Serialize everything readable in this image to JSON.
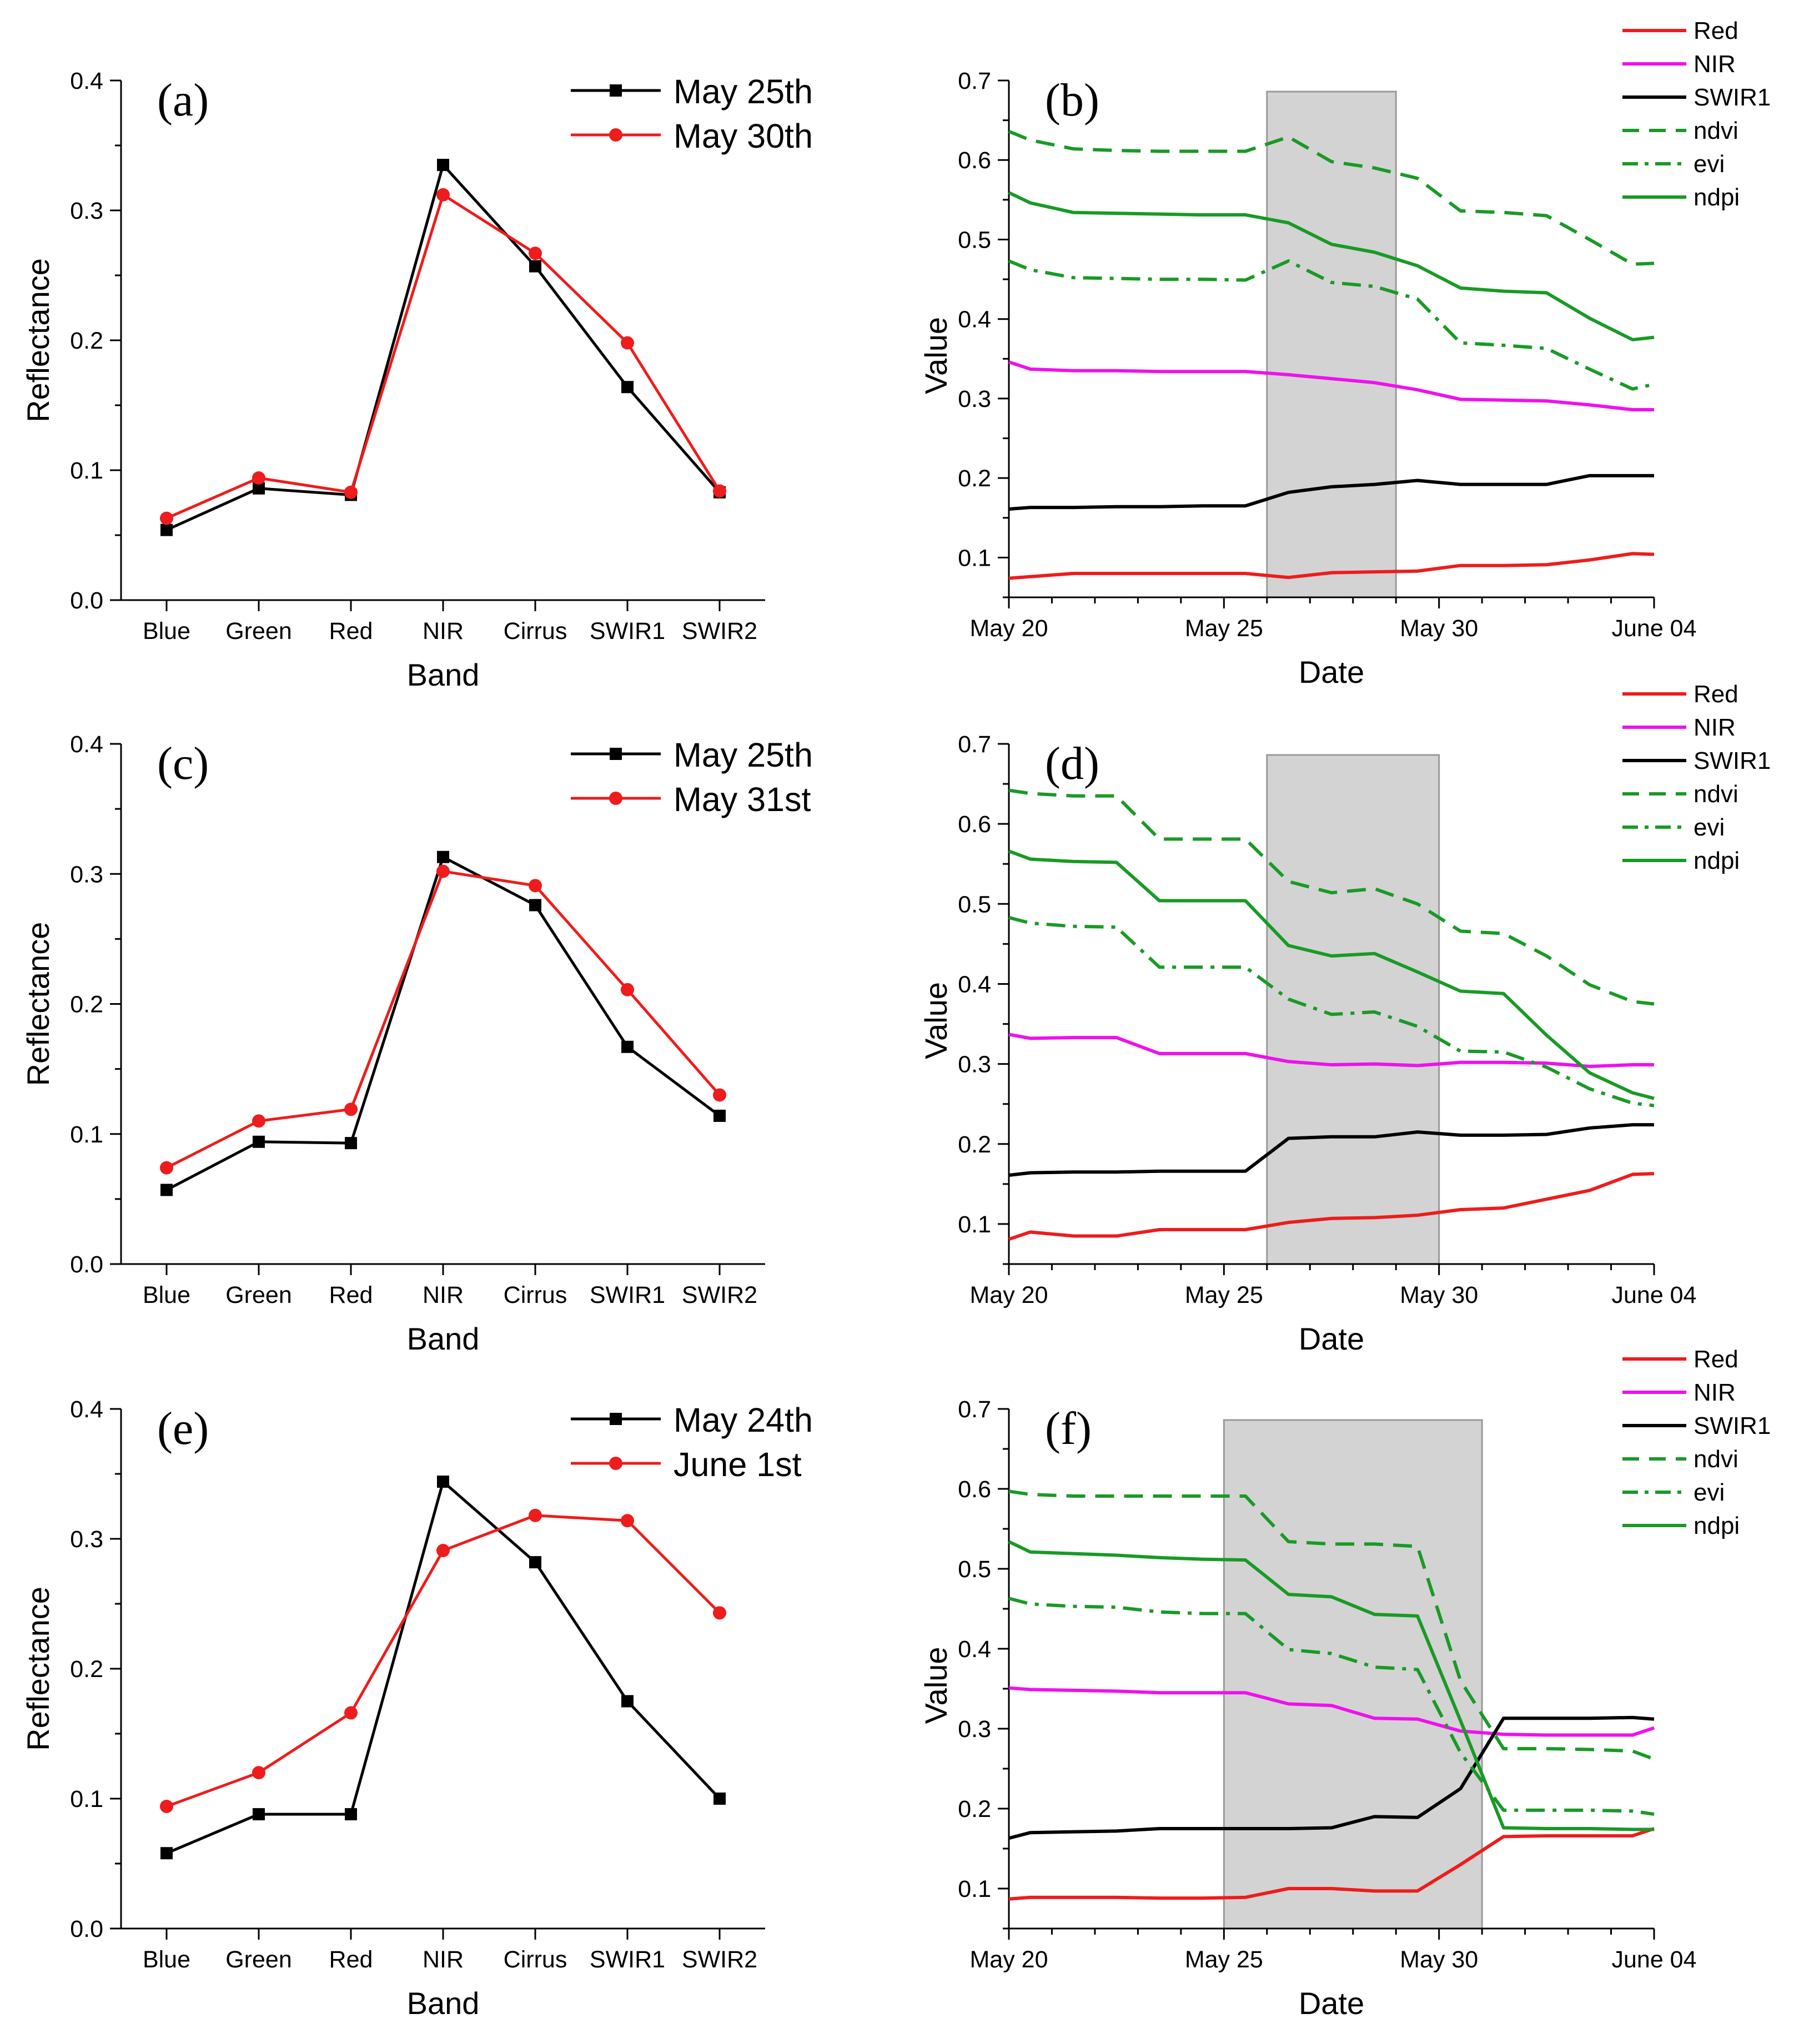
{
  "figure": {
    "style": {
      "red": "#ee1c1c",
      "black": "#000000",
      "magenta": "#ee11ee",
      "green": "#199a26",
      "shade": "#d3d3d3",
      "axis": "#000000"
    },
    "line_styles": {
      "Red": {
        "color": "#ee1c1c",
        "dash": "solid"
      },
      "NIR": {
        "color": "#ee11ee",
        "dash": "solid"
      },
      "SWIR1": {
        "color": "#000000",
        "dash": "solid"
      },
      "ndvi": {
        "color": "#199a26",
        "dash": "dash"
      },
      "evi": {
        "color": "#199a26",
        "dash": "dashdot"
      },
      "ndpi": {
        "color": "#199a26",
        "dash": "solid"
      }
    }
  },
  "chart_data": [
    {
      "id": "a",
      "type": "line",
      "label": "(a)",
      "xlabel": "Band",
      "ylabel": "Reflectance",
      "categories": [
        "Blue",
        "Green",
        "Red",
        "NIR",
        "Cirrus",
        "SWIR1",
        "SWIR2"
      ],
      "ylim": [
        0.0,
        0.4
      ],
      "yticks": [
        "0.0",
        "0.1",
        "0.2",
        "0.3",
        "0.4"
      ],
      "legend_position": "top-right",
      "series": [
        {
          "name": "May 25th",
          "color": "#000000",
          "marker": "square",
          "values": [
            0.054,
            0.086,
            0.081,
            0.335,
            0.257,
            0.164,
            0.083
          ]
        },
        {
          "name": "May 30th",
          "color": "#ee1c1c",
          "marker": "circle",
          "values": [
            0.063,
            0.094,
            0.083,
            0.312,
            0.267,
            0.198,
            0.084
          ]
        }
      ]
    },
    {
      "id": "b",
      "type": "line",
      "label": "(b)",
      "xlabel": "Date",
      "ylabel": "Value",
      "ylim": [
        0.05,
        0.7
      ],
      "yticks": [
        "0.1",
        "0.2",
        "0.3",
        "0.4",
        "0.5",
        "0.6",
        "0.7"
      ],
      "xlim": [
        0,
        15
      ],
      "xtick_positions": [
        0,
        5,
        10,
        15
      ],
      "xticks": [
        "May 20",
        "May 25",
        "May 30",
        "June 04"
      ],
      "shaded_region": [
        6,
        9
      ],
      "legend_position": "top-right outside",
      "x": [
        0,
        0.5,
        1.5,
        2.5,
        3.5,
        4.5,
        5.5,
        6.5,
        7.5,
        8.5,
        9.5,
        10.5,
        11.5,
        12.5,
        13.5,
        14.5,
        15
      ],
      "series": [
        {
          "name": "Red",
          "values": [
            0.074,
            0.076,
            0.08,
            0.08,
            0.08,
            0.08,
            0.08,
            0.075,
            0.081,
            0.082,
            0.083,
            0.09,
            0.09,
            0.091,
            0.097,
            0.105,
            0.104
          ]
        },
        {
          "name": "NIR",
          "values": [
            0.346,
            0.337,
            0.335,
            0.335,
            0.334,
            0.334,
            0.334,
            0.33,
            0.325,
            0.32,
            0.311,
            0.299,
            0.298,
            0.297,
            0.292,
            0.286,
            0.286
          ]
        },
        {
          "name": "SWIR1",
          "values": [
            0.161,
            0.163,
            0.163,
            0.164,
            0.164,
            0.165,
            0.165,
            0.182,
            0.189,
            0.192,
            0.197,
            0.192,
            0.192,
            0.192,
            0.203,
            0.203,
            0.203
          ]
        },
        {
          "name": "ndvi",
          "values": [
            0.636,
            0.625,
            0.614,
            0.612,
            0.611,
            0.611,
            0.611,
            0.629,
            0.598,
            0.59,
            0.577,
            0.536,
            0.534,
            0.53,
            0.5,
            0.469,
            0.47
          ]
        },
        {
          "name": "evi",
          "values": [
            0.473,
            0.462,
            0.452,
            0.451,
            0.45,
            0.45,
            0.449,
            0.473,
            0.446,
            0.441,
            0.425,
            0.37,
            0.367,
            0.363,
            0.337,
            0.312,
            0.318
          ]
        },
        {
          "name": "ndpi",
          "values": [
            0.559,
            0.546,
            0.534,
            0.533,
            0.532,
            0.531,
            0.531,
            0.521,
            0.494,
            0.484,
            0.467,
            0.439,
            0.435,
            0.433,
            0.401,
            0.374,
            0.377
          ]
        }
      ]
    },
    {
      "id": "c",
      "type": "line",
      "label": "(c)",
      "xlabel": "Band",
      "ylabel": "Reflectance",
      "categories": [
        "Blue",
        "Green",
        "Red",
        "NIR",
        "Cirrus",
        "SWIR1",
        "SWIR2"
      ],
      "ylim": [
        0.0,
        0.4
      ],
      "yticks": [
        "0.0",
        "0.1",
        "0.2",
        "0.3",
        "0.4"
      ],
      "legend_position": "top-right",
      "series": [
        {
          "name": "May 25th",
          "color": "#000000",
          "marker": "square",
          "values": [
            0.057,
            0.094,
            0.093,
            0.313,
            0.276,
            0.167,
            0.114
          ]
        },
        {
          "name": "May 31st",
          "color": "#ee1c1c",
          "marker": "circle",
          "values": [
            0.074,
            0.11,
            0.119,
            0.302,
            0.291,
            0.211,
            0.13
          ]
        }
      ]
    },
    {
      "id": "d",
      "type": "line",
      "label": "(d)",
      "xlabel": "Date",
      "ylabel": "Value",
      "ylim": [
        0.05,
        0.7
      ],
      "yticks": [
        "0.1",
        "0.2",
        "0.3",
        "0.4",
        "0.5",
        "0.6",
        "0.7"
      ],
      "xlim": [
        0,
        15
      ],
      "xtick_positions": [
        0,
        5,
        10,
        15
      ],
      "xticks": [
        "May 20",
        "May 25",
        "May 30",
        "June 04"
      ],
      "shaded_region": [
        6,
        10
      ],
      "legend_position": "top-right outside",
      "x": [
        0,
        0.5,
        1.5,
        2.5,
        3.5,
        4.5,
        5.5,
        6.5,
        7.5,
        8.5,
        9.5,
        10.5,
        11.5,
        12.5,
        13.5,
        14.5,
        15
      ],
      "series": [
        {
          "name": "Red",
          "values": [
            0.081,
            0.09,
            0.085,
            0.085,
            0.093,
            0.093,
            0.093,
            0.102,
            0.107,
            0.108,
            0.111,
            0.118,
            0.12,
            0.131,
            0.142,
            0.162,
            0.163
          ]
        },
        {
          "name": "NIR",
          "values": [
            0.337,
            0.332,
            0.333,
            0.333,
            0.313,
            0.313,
            0.313,
            0.303,
            0.299,
            0.3,
            0.298,
            0.302,
            0.302,
            0.301,
            0.297,
            0.299,
            0.299
          ]
        },
        {
          "name": "SWIR1",
          "values": [
            0.161,
            0.164,
            0.165,
            0.165,
            0.166,
            0.166,
            0.166,
            0.207,
            0.209,
            0.209,
            0.215,
            0.211,
            0.211,
            0.212,
            0.22,
            0.224,
            0.224
          ]
        },
        {
          "name": "ndvi",
          "values": [
            0.642,
            0.638,
            0.635,
            0.635,
            0.581,
            0.581,
            0.581,
            0.528,
            0.514,
            0.519,
            0.5,
            0.466,
            0.463,
            0.435,
            0.399,
            0.378,
            0.375
          ]
        },
        {
          "name": "evi",
          "values": [
            0.483,
            0.476,
            0.472,
            0.471,
            0.421,
            0.421,
            0.421,
            0.381,
            0.362,
            0.365,
            0.347,
            0.316,
            0.315,
            0.296,
            0.269,
            0.251,
            0.248
          ]
        },
        {
          "name": "ndpi",
          "values": [
            0.566,
            0.556,
            0.553,
            0.552,
            0.504,
            0.504,
            0.504,
            0.448,
            0.435,
            0.438,
            0.415,
            0.391,
            0.388,
            0.336,
            0.289,
            0.264,
            0.257
          ]
        }
      ]
    },
    {
      "id": "e",
      "type": "line",
      "label": "(e)",
      "xlabel": "Band",
      "ylabel": "Reflectance",
      "categories": [
        "Blue",
        "Green",
        "Red",
        "NIR",
        "Cirrus",
        "SWIR1",
        "SWIR2"
      ],
      "ylim": [
        0.0,
        0.4
      ],
      "yticks": [
        "0.0",
        "0.1",
        "0.2",
        "0.3",
        "0.4"
      ],
      "legend_position": "top-right",
      "series": [
        {
          "name": "May 24th",
          "color": "#000000",
          "marker": "square",
          "values": [
            0.058,
            0.088,
            0.088,
            0.344,
            0.282,
            0.175,
            0.1
          ]
        },
        {
          "name": "June 1st",
          "color": "#ee1c1c",
          "marker": "circle",
          "values": [
            0.094,
            0.12,
            0.166,
            0.291,
            0.318,
            0.314,
            0.243
          ]
        }
      ]
    },
    {
      "id": "f",
      "type": "line",
      "label": "(f)",
      "xlabel": "Date",
      "ylabel": "Value",
      "ylim": [
        0.05,
        0.7
      ],
      "yticks": [
        "0.1",
        "0.2",
        "0.3",
        "0.4",
        "0.5",
        "0.6",
        "0.7"
      ],
      "xlim": [
        0,
        15
      ],
      "xtick_positions": [
        0,
        5,
        10,
        15
      ],
      "xticks": [
        "May 20",
        "May 25",
        "May 30",
        "June 04"
      ],
      "shaded_region": [
        5,
        11
      ],
      "legend_position": "top-right outside",
      "x": [
        0,
        0.5,
        1.5,
        2.5,
        3.5,
        4.5,
        5.5,
        6.5,
        7.5,
        8.5,
        9.5,
        10.5,
        11.5,
        12.5,
        13.5,
        14.5,
        15
      ],
      "series": [
        {
          "name": "Red",
          "values": [
            0.087,
            0.089,
            0.089,
            0.089,
            0.088,
            0.088,
            0.089,
            0.1,
            0.1,
            0.097,
            0.097,
            0.13,
            0.165,
            0.166,
            0.166,
            0.166,
            0.175
          ]
        },
        {
          "name": "NIR",
          "values": [
            0.351,
            0.349,
            0.348,
            0.347,
            0.345,
            0.345,
            0.345,
            0.331,
            0.329,
            0.313,
            0.312,
            0.297,
            0.293,
            0.292,
            0.292,
            0.292,
            0.301
          ]
        },
        {
          "name": "SWIR1",
          "values": [
            0.163,
            0.17,
            0.171,
            0.172,
            0.175,
            0.175,
            0.175,
            0.175,
            0.176,
            0.19,
            0.189,
            0.225,
            0.313,
            0.313,
            0.313,
            0.314,
            0.312
          ]
        },
        {
          "name": "ndvi",
          "values": [
            0.597,
            0.593,
            0.591,
            0.591,
            0.591,
            0.591,
            0.591,
            0.534,
            0.531,
            0.531,
            0.528,
            0.36,
            0.275,
            0.275,
            0.274,
            0.272,
            0.262
          ]
        },
        {
          "name": "evi",
          "values": [
            0.463,
            0.456,
            0.453,
            0.452,
            0.446,
            0.444,
            0.444,
            0.399,
            0.394,
            0.377,
            0.374,
            0.27,
            0.198,
            0.198,
            0.198,
            0.197,
            0.193
          ]
        },
        {
          "name": "ndpi",
          "values": [
            0.534,
            0.521,
            0.519,
            0.517,
            0.514,
            0.512,
            0.511,
            0.468,
            0.465,
            0.443,
            0.441,
            0.31,
            0.176,
            0.175,
            0.175,
            0.174,
            0.174
          ]
        }
      ]
    }
  ]
}
